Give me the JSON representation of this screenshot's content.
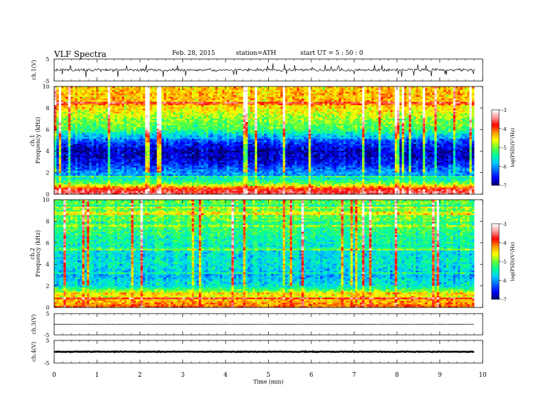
{
  "header": {
    "title": "VLF Spectra",
    "date": "Feb. 28, 2015",
    "station": "station=ATH",
    "start": "start  UT  =   5  : 50 : 0"
  },
  "colors": {
    "frame": "#000000",
    "background": "#ffffff",
    "colormap": [
      "#000066",
      "#0000ff",
      "#0066ff",
      "#00ccff",
      "#00ff99",
      "#66ff33",
      "#ffff00",
      "#ff9900",
      "#ff0000",
      "#ff9999",
      "#ffffff"
    ]
  },
  "chart_data": [
    {
      "type": "line",
      "panel": "ch1-waveform",
      "ylabel": "ch.1(V)",
      "ylim": [
        -5,
        5
      ],
      "yticks": [
        "5",
        "-5"
      ],
      "xlim": [
        0,
        10
      ],
      "series": [
        {
          "description_note": "",
          "mean": 0,
          "amplitude_typical": 1.0,
          "amplitude_spikes": 3.2
        }
      ]
    },
    {
      "type": "heatmap",
      "panel": "ch1-spectrogram",
      "ylabel": "Frequency  (kHz)",
      "channel": "ch.1",
      "ylim": [
        0,
        10
      ],
      "yticks": [
        "0",
        "2",
        "4",
        "6",
        "8",
        "10"
      ],
      "xlim": [
        0,
        10
      ],
      "data_end_min": 9.8,
      "colorbar": {
        "label": "log(PSD)(V²/Hz)",
        "range": [
          -7,
          -3
        ],
        "ticks": [
          "-3",
          "-4",
          "-5",
          "-6",
          "-7"
        ]
      },
      "profile_khz": [
        [
          0.0,
          -3.5
        ],
        [
          0.5,
          -3.8
        ],
        [
          1.0,
          -5.0
        ],
        [
          1.5,
          -5.6
        ],
        [
          2.0,
          -6.0
        ],
        [
          3.0,
          -6.6
        ],
        [
          4.0,
          -6.8
        ],
        [
          5.0,
          -6.3
        ],
        [
          6.0,
          -5.2
        ],
        [
          7.0,
          -4.9
        ],
        [
          8.0,
          -4.5
        ],
        [
          9.0,
          -4.3
        ],
        [
          10.0,
          -4.4
        ]
      ]
    },
    {
      "type": "heatmap",
      "panel": "ch2-spectrogram",
      "ylabel": "Frequency  (kHz)",
      "channel": "ch.2",
      "ylim": [
        0,
        10
      ],
      "yticks": [
        "0",
        "2",
        "4",
        "6",
        "8",
        "10"
      ],
      "xlim": [
        0,
        10
      ],
      "data_end_min": 9.8,
      "colorbar": {
        "label": "log(PSD)(V²/Hz)",
        "range": [
          -7,
          -3
        ],
        "ticks": [
          "-3",
          "-4",
          "-5",
          "-6",
          "-7"
        ]
      },
      "profile_khz": [
        [
          0.0,
          -4.0
        ],
        [
          0.5,
          -4.3
        ],
        [
          1.0,
          -4.4
        ],
        [
          1.5,
          -4.9
        ],
        [
          2.0,
          -5.6
        ],
        [
          3.0,
          -5.9
        ],
        [
          4.0,
          -5.6
        ],
        [
          5.0,
          -5.7
        ],
        [
          6.0,
          -5.5
        ],
        [
          7.0,
          -5.3
        ],
        [
          8.0,
          -5.1
        ],
        [
          9.0,
          -5.0
        ],
        [
          10.0,
          -5.1
        ]
      ]
    },
    {
      "type": "line",
      "panel": "ch3-waveform",
      "ylabel": "ch.3(V)",
      "ylim": [
        -5,
        5
      ],
      "yticks": [
        "5",
        "-5"
      ],
      "xlim": [
        0,
        10
      ],
      "series": [
        {
          "mean": 0,
          "amplitude_typical": 0.15
        }
      ]
    },
    {
      "type": "line",
      "panel": "ch4-waveform",
      "ylabel": "ch.4(V)",
      "ylim": [
        -5,
        5
      ],
      "yticks": [
        "5",
        "-5"
      ],
      "xlim": [
        0,
        10
      ],
      "xlabel": "Time  (min)",
      "xticks": [
        "0",
        "1",
        "2",
        "3",
        "4",
        "5",
        "6",
        "7",
        "8",
        "9",
        "10"
      ],
      "series": [
        {
          "mean": 0,
          "amplitude_typical": 0.25
        }
      ]
    }
  ]
}
